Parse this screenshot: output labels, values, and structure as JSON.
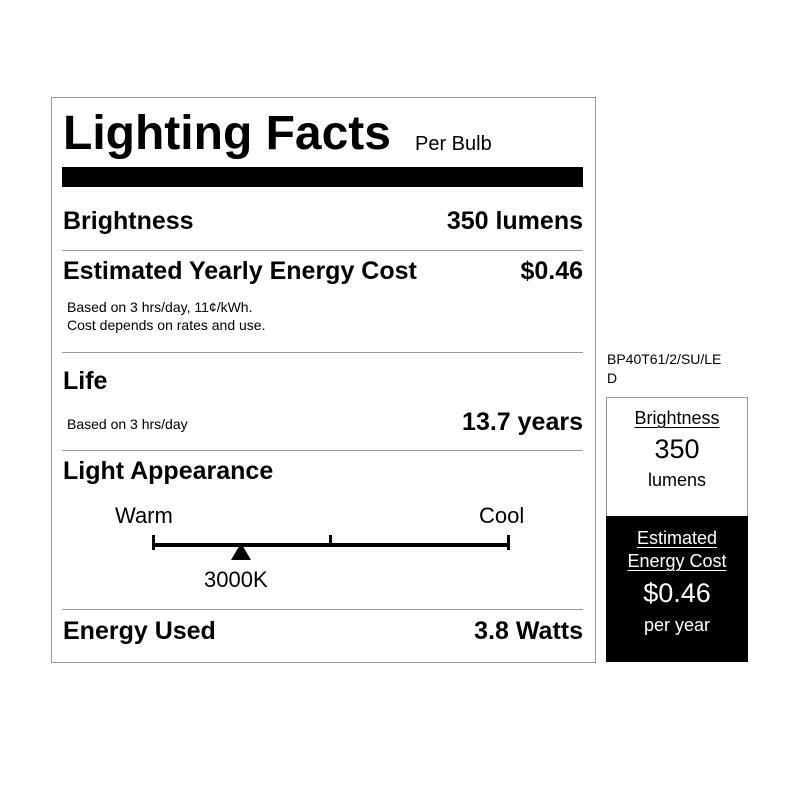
{
  "label": {
    "title": "Lighting Facts",
    "subtitle": "Per Bulb",
    "brightness": {
      "label": "Brightness",
      "value": "350 lumens"
    },
    "cost": {
      "label": "Estimated Yearly Energy Cost",
      "value": "$0.46",
      "note1": "Based on 3 hrs/day, 11¢/kWh.",
      "note2": "Cost depends on rates and use."
    },
    "life": {
      "label": "Life",
      "note": "Based on 3 hrs/day",
      "value": "13.7 years"
    },
    "appearance": {
      "label": "Light Appearance",
      "warm": "Warm",
      "cool": "Cool",
      "value": "3000K",
      "scale_min_k": 2700,
      "scale_max_k": 6500
    },
    "energy": {
      "label": "Energy Used",
      "value": "3.8 Watts"
    }
  },
  "side": {
    "model": "BP40T61/2/SU/LE",
    "model_wrap": "D",
    "brightness_label": "Brightness",
    "brightness_value": "350",
    "brightness_unit": "lumens",
    "cost_label1": "Estimated",
    "cost_label2": "Energy Cost",
    "cost_value": "$0.46",
    "cost_unit": "per year"
  }
}
